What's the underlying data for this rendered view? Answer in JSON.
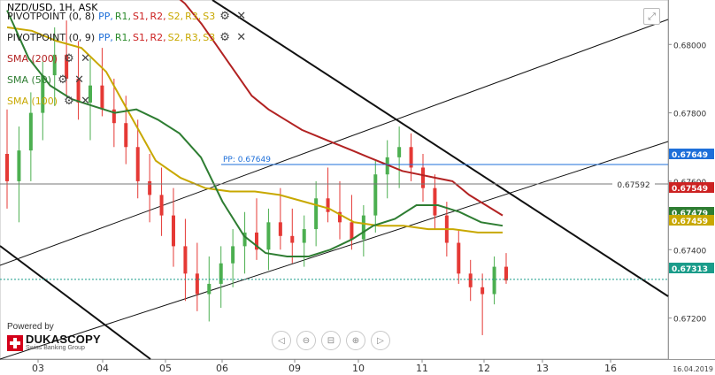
{
  "header": {
    "title": "NZD/USD, 1H, ASK"
  },
  "legend": [
    {
      "name": "PIVOTPOINT (0, 8)",
      "color": "#222222",
      "parts": [
        [
          "PP",
          "#1e6fd9"
        ],
        [
          "R1",
          "#2a8a2a"
        ],
        [
          "S1",
          "#cc2222"
        ],
        [
          "R2",
          "#cc2222"
        ],
        [
          "S2",
          "#c8a800"
        ],
        [
          "R3",
          "#c8a800"
        ],
        [
          "S3",
          "#c8a800"
        ]
      ]
    },
    {
      "name": "PIVOTPOINT (0, 9)",
      "color": "#222222",
      "parts": [
        [
          "PP",
          "#1e6fd9"
        ],
        [
          "R1",
          "#2a8a2a"
        ],
        [
          "S1",
          "#cc2222"
        ],
        [
          "R2",
          "#cc2222"
        ],
        [
          "S2",
          "#c8a800"
        ],
        [
          "R3",
          "#c8a800"
        ],
        [
          "S3",
          "#c8a800"
        ]
      ]
    },
    {
      "name": "SMA (200)",
      "color": "#b22222",
      "parts": []
    },
    {
      "name": "SMA (50)",
      "color": "#2e7d32",
      "parts": []
    },
    {
      "name": "SMA (100)",
      "color": "#c8a800",
      "parts": []
    }
  ],
  "branding": {
    "powered": "Powered by",
    "brand": "DUKASCOPY",
    "sub": "Swiss Banking Group"
  },
  "date_stamp": "16.04.2019",
  "pp_label": "PP: 0.67649",
  "crosshair_label": "0.67592",
  "chart_data": {
    "type": "candlestick",
    "title": "NZD/USD, 1H, ASK",
    "x_ticks": [
      "03",
      "04",
      "05",
      "06",
      "09",
      "10",
      "11",
      "12",
      "13",
      "16"
    ],
    "y_ticks": [
      0.672,
      0.674,
      0.676,
      0.678,
      0.68
    ],
    "ylim": [
      0.6708,
      0.6813
    ],
    "price_tags": [
      {
        "value": 0.67649,
        "label": "0.67649",
        "color": "#1e6fd9"
      },
      {
        "value": 0.67549,
        "label": "0.67549",
        "color": "#cc2222"
      },
      {
        "value": 0.67479,
        "label": "0.67479",
        "color": "#2e7d32"
      },
      {
        "value": 0.67459,
        "label": "0.67459",
        "color": "#c8a800"
      },
      {
        "value": 0.67313,
        "label": "0.67313",
        "color": "#1a9c8a"
      }
    ],
    "sma_200": [
      0.6816,
      0.6812,
      0.6806,
      0.6799,
      0.6792,
      0.6785,
      0.6781,
      0.6778,
      0.6775,
      0.6773,
      0.6771,
      0.6769,
      0.6767,
      0.6765,
      0.6763,
      0.6762,
      0.6761,
      0.676,
      0.6756,
      0.6753,
      0.675
    ],
    "sma_100": [
      0.6805,
      0.6804,
      0.6801,
      0.6799,
      0.6792,
      0.6779,
      0.6766,
      0.6761,
      0.6758,
      0.6757,
      0.6757,
      0.6756,
      0.6754,
      0.6752,
      0.6748,
      0.6747,
      0.6747,
      0.6746,
      0.6746,
      0.6745,
      0.6745
    ],
    "sma_50": [
      0.681,
      0.6796,
      0.6788,
      0.6784,
      0.6782,
      0.678,
      0.6781,
      0.6778,
      0.6774,
      0.6767,
      0.6754,
      0.6744,
      0.6739,
      0.6738,
      0.6738,
      0.674,
      0.6743,
      0.6747,
      0.6749,
      0.6753,
      0.6753,
      0.6751,
      0.6748,
      0.6747
    ],
    "ohlc": [
      [
        0.6768,
        0.6781,
        0.6752,
        0.676
      ],
      [
        0.676,
        0.6776,
        0.6748,
        0.6769
      ],
      [
        0.6769,
        0.6786,
        0.676,
        0.678
      ],
      [
        0.678,
        0.6795,
        0.6772,
        0.6791
      ],
      [
        0.6791,
        0.6805,
        0.6782,
        0.6797
      ],
      [
        0.6797,
        0.6807,
        0.6785,
        0.679
      ],
      [
        0.679,
        0.6801,
        0.6778,
        0.6783
      ],
      [
        0.6783,
        0.6796,
        0.6772,
        0.6788
      ],
      [
        0.6788,
        0.6799,
        0.6779,
        0.6781
      ],
      [
        0.6781,
        0.679,
        0.677,
        0.6777
      ],
      [
        0.6777,
        0.6785,
        0.6765,
        0.677
      ],
      [
        0.677,
        0.6778,
        0.6755,
        0.676
      ],
      [
        0.676,
        0.6768,
        0.6748,
        0.6756
      ],
      [
        0.6756,
        0.6764,
        0.6744,
        0.675
      ],
      [
        0.675,
        0.6758,
        0.6735,
        0.6741
      ],
      [
        0.6741,
        0.6749,
        0.6725,
        0.6733
      ],
      [
        0.6733,
        0.6742,
        0.6722,
        0.6727
      ],
      [
        0.6727,
        0.6738,
        0.6719,
        0.673
      ],
      [
        0.673,
        0.6741,
        0.6723,
        0.6736
      ],
      [
        0.6736,
        0.6746,
        0.6729,
        0.6741
      ],
      [
        0.6741,
        0.6751,
        0.6733,
        0.6745
      ],
      [
        0.6745,
        0.6755,
        0.6737,
        0.674
      ],
      [
        0.674,
        0.6752,
        0.6734,
        0.6748
      ],
      [
        0.6748,
        0.6758,
        0.674,
        0.6744
      ],
      [
        0.6744,
        0.6752,
        0.6736,
        0.6742
      ],
      [
        0.6742,
        0.675,
        0.6735,
        0.6746
      ],
      [
        0.6746,
        0.676,
        0.6741,
        0.6755
      ],
      [
        0.6755,
        0.6764,
        0.6748,
        0.6751
      ],
      [
        0.6751,
        0.676,
        0.6743,
        0.6748
      ],
      [
        0.6748,
        0.6756,
        0.674,
        0.6743
      ],
      [
        0.6743,
        0.6753,
        0.6738,
        0.675
      ],
      [
        0.675,
        0.6766,
        0.6745,
        0.6762
      ],
      [
        0.6762,
        0.6772,
        0.6755,
        0.6767
      ],
      [
        0.6767,
        0.6776,
        0.6758,
        0.677
      ],
      [
        0.677,
        0.6774,
        0.676,
        0.6764
      ],
      [
        0.6764,
        0.6768,
        0.6754,
        0.6758
      ],
      [
        0.6758,
        0.6762,
        0.6746,
        0.675
      ],
      [
        0.675,
        0.6754,
        0.6738,
        0.6742
      ],
      [
        0.6742,
        0.6746,
        0.673,
        0.6733
      ],
      [
        0.6733,
        0.6737,
        0.6725,
        0.6729
      ],
      [
        0.6729,
        0.6733,
        0.6715,
        0.6727
      ],
      [
        0.6727,
        0.6738,
        0.6724,
        0.6735
      ],
      [
        0.6735,
        0.6739,
        0.673,
        0.6731
      ]
    ]
  }
}
